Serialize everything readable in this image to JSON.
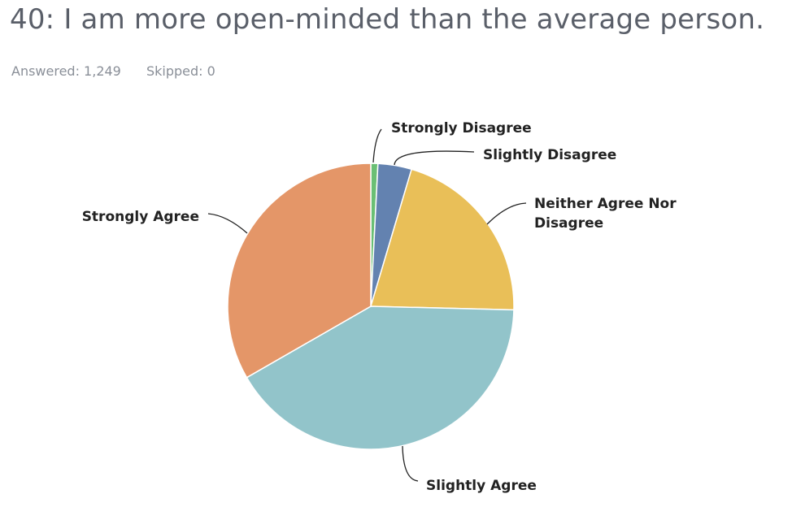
{
  "question": {
    "title": "40: I am more open-minded than the average person."
  },
  "stats": {
    "answered": "Answered: 1,249",
    "skipped": "Skipped: 0"
  },
  "chart_data": {
    "type": "pie",
    "start_angle_deg": 0,
    "direction": "clockwise",
    "slices": [
      {
        "label": "Strongly Disagree",
        "lines": [
          "Strongly Disagree"
        ],
        "value": 0.8,
        "color": "#6abf74"
      },
      {
        "label": "Slightly Disagree",
        "lines": [
          "Slightly Disagree"
        ],
        "value": 3.8,
        "color": "#6382b0"
      },
      {
        "label": "Neither Agree Nor Disagree",
        "lines": [
          "Neither Agree Nor",
          "Disagree"
        ],
        "value": 20.8,
        "color": "#e9bf58"
      },
      {
        "label": "Slightly Agree",
        "lines": [
          "Slightly Agree"
        ],
        "value": 41.3,
        "color": "#92c4ca"
      },
      {
        "label": "Strongly Agree",
        "lines": [
          "Strongly Agree"
        ],
        "value": 33.3,
        "color": "#e49668"
      }
    ]
  }
}
